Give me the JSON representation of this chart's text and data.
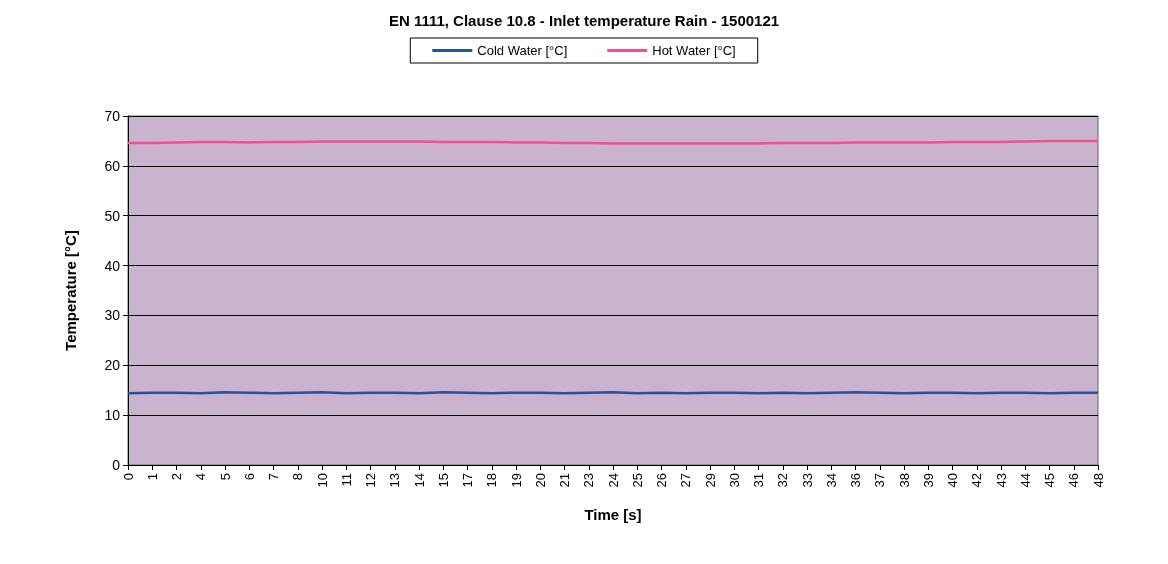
{
  "chart_data": {
    "type": "line",
    "title": "EN 1111, Clause 10.8 - Inlet temperature Rain - 1500121",
    "xlabel": "Time [s]",
    "ylabel": "Temperature [°C]",
    "categories": [
      "0",
      "1",
      "2",
      "4",
      "5",
      "6",
      "7",
      "8",
      "10",
      "11",
      "12",
      "13",
      "14",
      "15",
      "17",
      "18",
      "19",
      "20",
      "21",
      "23",
      "24",
      "25",
      "26",
      "27",
      "29",
      "30",
      "31",
      "32",
      "33",
      "34",
      "36",
      "37",
      "38",
      "39",
      "40",
      "42",
      "43",
      "44",
      "45",
      "46",
      "48"
    ],
    "series": [
      {
        "name": "Cold Water [°C]",
        "color": "#2e4f9a",
        "values": [
          14.4,
          14.5,
          14.5,
          14.4,
          14.6,
          14.5,
          14.4,
          14.5,
          14.6,
          14.4,
          14.5,
          14.5,
          14.4,
          14.6,
          14.5,
          14.4,
          14.5,
          14.5,
          14.4,
          14.5,
          14.6,
          14.4,
          14.5,
          14.4,
          14.5,
          14.5,
          14.4,
          14.5,
          14.4,
          14.5,
          14.6,
          14.5,
          14.4,
          14.5,
          14.5,
          14.4,
          14.5,
          14.5,
          14.4,
          14.5,
          14.5
        ]
      },
      {
        "name": "Hot Water [°C]",
        "color": "#f0508c",
        "values": [
          64.6,
          64.6,
          64.7,
          64.8,
          64.8,
          64.7,
          64.8,
          64.8,
          64.9,
          64.9,
          64.9,
          64.9,
          64.9,
          64.8,
          64.8,
          64.8,
          64.7,
          64.7,
          64.6,
          64.6,
          64.5,
          64.5,
          64.5,
          64.5,
          64.5,
          64.5,
          64.5,
          64.6,
          64.6,
          64.6,
          64.7,
          64.7,
          64.7,
          64.7,
          64.8,
          64.8,
          64.8,
          64.9,
          65.0,
          65.0,
          65.0
        ]
      }
    ],
    "ylim": [
      0,
      70
    ],
    "yticks": [
      0,
      10,
      20,
      30,
      40,
      50,
      60,
      70
    ],
    "grid": "y",
    "legend": "top",
    "marker": "none",
    "line_style": "solid"
  }
}
